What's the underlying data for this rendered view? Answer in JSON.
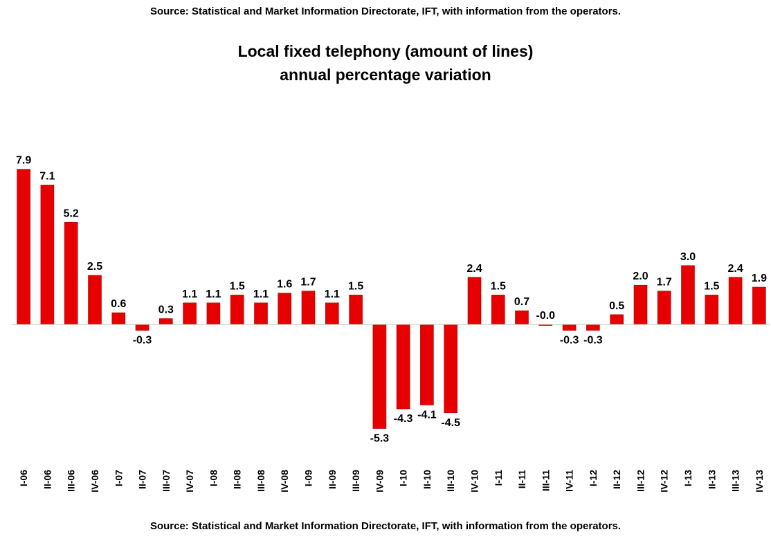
{
  "source_top": "Source: Statistical and Market Information Directorate, IFT, with information from the operators.",
  "source_bottom": "Source: Statistical and Market Information Directorate, IFT, with information from the operators.",
  "chart_data": {
    "type": "bar",
    "title_line1": "Local fixed telephony (amount of lines)",
    "title_line2": "annual percentage variation",
    "bar_color": "#e60000",
    "categories": [
      "I-06",
      "II-06",
      "III-06",
      "IV-06",
      "I-07",
      "II-07",
      "III-07",
      "IV-07",
      "I-08",
      "II-08",
      "III-08",
      "IV-08",
      "I-09",
      "II-09",
      "III-09",
      "IV-09",
      "I-10",
      "II-10",
      "III-10",
      "IV-10",
      "I-11",
      "II-11",
      "III-11",
      "IV-11",
      "I-12",
      "II-12",
      "III-12",
      "IV-12",
      "I-13",
      "II-13",
      "III-13",
      "IV-13"
    ],
    "values": [
      7.9,
      7.1,
      5.2,
      2.5,
      0.6,
      -0.3,
      0.3,
      1.1,
      1.1,
      1.5,
      1.1,
      1.6,
      1.7,
      1.1,
      1.5,
      -5.3,
      -4.3,
      -4.1,
      -4.5,
      2.4,
      1.5,
      0.7,
      -0.0,
      -0.3,
      -0.3,
      0.5,
      2.0,
      1.7,
      3.0,
      1.5,
      2.4,
      1.9
    ],
    "labels": [
      "7.9",
      "7.1",
      "5.2",
      "2.5",
      "0.6",
      "-0.3",
      "0.3",
      "1.1",
      "1.1",
      "1.5",
      "1.1",
      "1.6",
      "1.7",
      "1.1",
      "1.5",
      "-5.3",
      "-4.3",
      "-4.1",
      "-4.5",
      "2.4",
      "1.5",
      "0.7",
      "-0.0",
      "-0.3",
      "-0.3",
      "0.5",
      "2.0",
      "1.7",
      "3.0",
      "1.5",
      "2.4",
      "1.9"
    ],
    "legend": "none",
    "grid": false
  }
}
